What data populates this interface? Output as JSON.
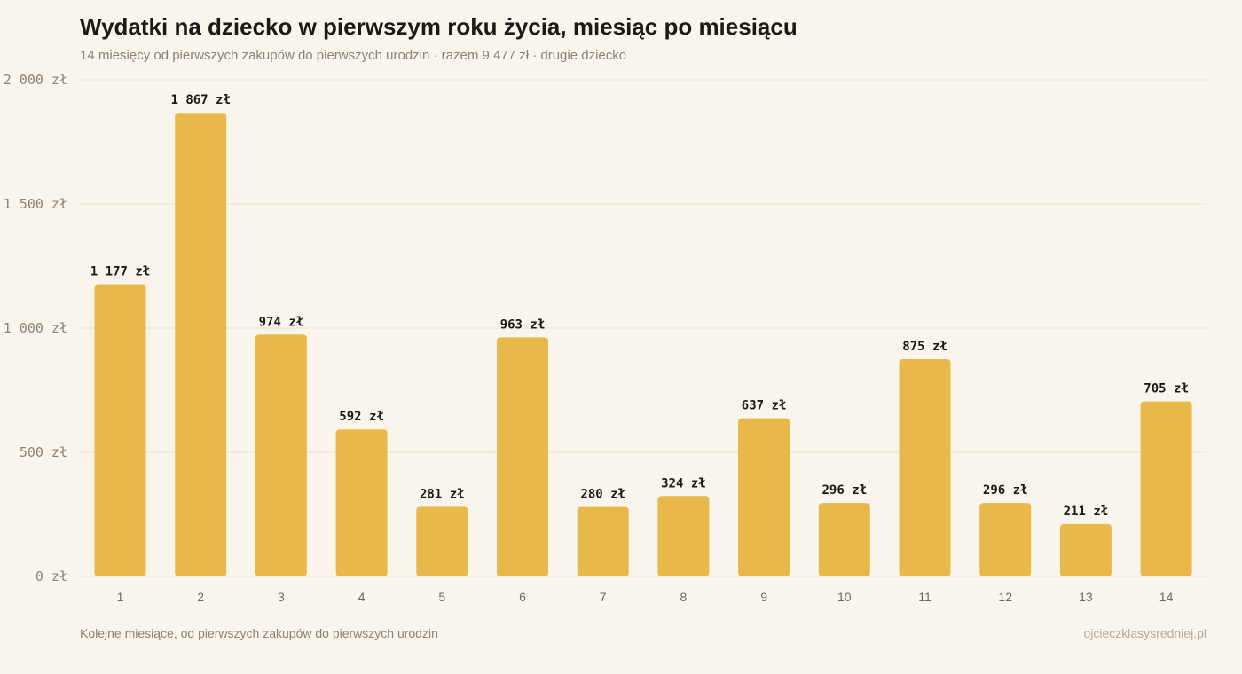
{
  "header": {
    "title": "Wydatki na dziecko w pierwszym roku życia, miesiąc po miesiącu",
    "subtitle": "14 miesięcy od pierwszych zakupów do pierwszych urodzin · razem 9 477 zł · drugie dziecko"
  },
  "footer": {
    "note": "Kolejne miesiące, od pierwszych zakupów do pierwszych urodzin",
    "source": "ojcieczklasysredniej.pl"
  },
  "colors": {
    "bar": "#e8b94a",
    "background": "#f9f5ec"
  },
  "chart_data": {
    "type": "bar",
    "title": "Wydatki na dziecko w pierwszym roku życia, miesiąc po miesiącu",
    "subtitle": "14 miesięcy od pierwszych zakupów do pierwszych urodzin · razem 9 477 zł · drugie dziecko",
    "xlabel": "Kolejne miesiące, od pierwszych zakupów do pierwszych urodzin",
    "ylabel": "",
    "categories": [
      "1",
      "2",
      "3",
      "4",
      "5",
      "6",
      "7",
      "8",
      "9",
      "10",
      "11",
      "12",
      "13",
      "14"
    ],
    "values": [
      1177,
      1867,
      974,
      592,
      281,
      963,
      280,
      324,
      637,
      296,
      875,
      296,
      211,
      705
    ],
    "value_labels": [
      "1 177 zł",
      "1 867 zł",
      "974 zł",
      "592 zł",
      "281 zł",
      "963 zł",
      "280 zł",
      "324 zł",
      "637 zł",
      "296 zł",
      "875 zł",
      "296 zł",
      "211 zł",
      "705 zł"
    ],
    "ylim": [
      0,
      2000
    ],
    "yticks": [
      0,
      500,
      1000,
      1500,
      2000
    ],
    "ytick_labels": [
      "0 zł",
      "500 zł",
      "1 000 zł",
      "1 500 zł",
      "2 000 zł"
    ],
    "grid": true,
    "legend": "none"
  }
}
